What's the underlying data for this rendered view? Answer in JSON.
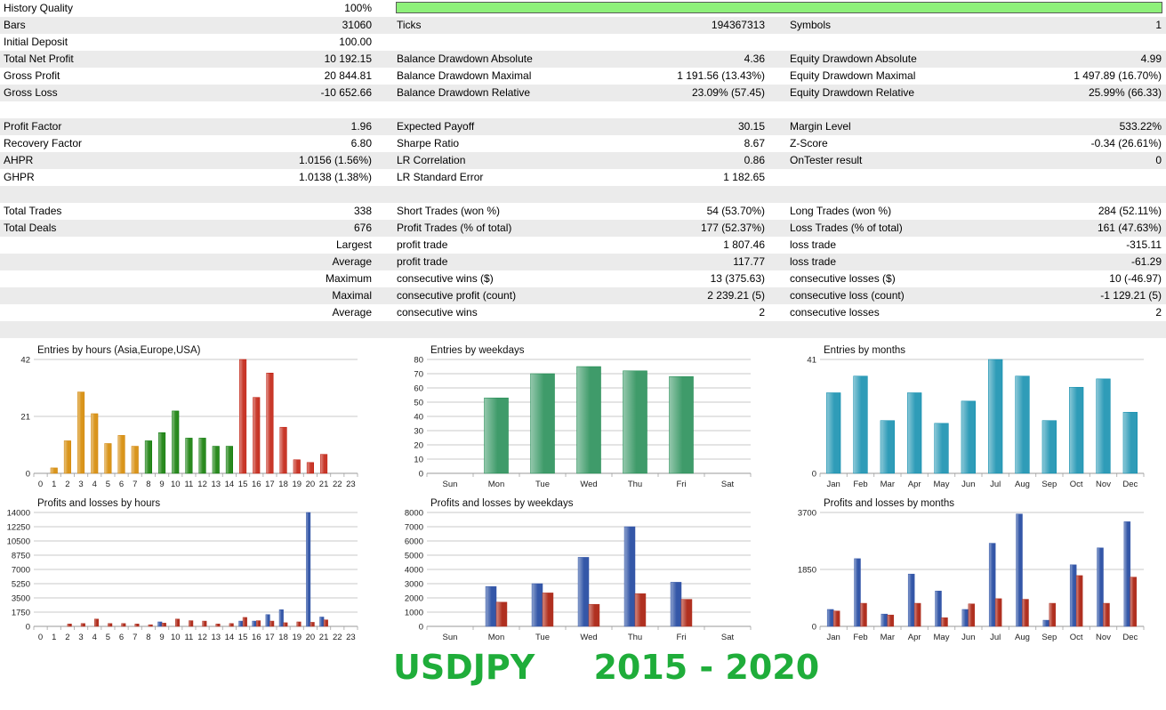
{
  "stats": {
    "history_quality": {
      "label": "History Quality",
      "value": "100%",
      "fill_percent": 100
    },
    "row_bars": [
      {
        "label": "Bars",
        "value": "31060"
      },
      {
        "label": "Ticks",
        "value": "194367313"
      },
      {
        "label": "Symbols",
        "value": "1"
      }
    ],
    "row_deposit": [
      {
        "label": "Initial Deposit",
        "value": "100.00"
      }
    ],
    "row_netprofit": [
      {
        "label": "Total Net Profit",
        "value": "10 192.15"
      },
      {
        "label": "Balance Drawdown Absolute",
        "value": "4.36"
      },
      {
        "label": "Equity Drawdown Absolute",
        "value": "4.99"
      }
    ],
    "row_grossprofit": [
      {
        "label": "Gross Profit",
        "value": "20 844.81"
      },
      {
        "label": "Balance Drawdown Maximal",
        "value": "1 191.56 (13.43%)"
      },
      {
        "label": "Equity Drawdown Maximal",
        "value": "1 497.89 (16.70%)"
      }
    ],
    "row_grossloss": [
      {
        "label": "Gross Loss",
        "value": "-10 652.66"
      },
      {
        "label": "Balance Drawdown Relative",
        "value": "23.09% (57.45)"
      },
      {
        "label": "Equity Drawdown Relative",
        "value": "25.99% (66.33)"
      }
    ],
    "row_pf": [
      {
        "label": "Profit Factor",
        "value": "1.96"
      },
      {
        "label": "Expected Payoff",
        "value": "30.15"
      },
      {
        "label": "Margin Level",
        "value": "533.22%"
      }
    ],
    "row_rf": [
      {
        "label": "Recovery Factor",
        "value": "6.80"
      },
      {
        "label": "Sharpe Ratio",
        "value": "8.67"
      },
      {
        "label": "Z-Score",
        "value": "-0.34 (26.61%)"
      }
    ],
    "row_ahpr": [
      {
        "label": "AHPR",
        "value": "1.0156 (1.56%)"
      },
      {
        "label": "LR Correlation",
        "value": "0.86"
      },
      {
        "label": "OnTester result",
        "value": "0"
      }
    ],
    "row_ghpr": [
      {
        "label": "GHPR",
        "value": "1.0138 (1.38%)"
      },
      {
        "label": "LR Standard Error",
        "value": "1 182.65"
      }
    ],
    "row_trades": [
      {
        "label": "Total Trades",
        "value": "338"
      },
      {
        "label": "Short Trades (won %)",
        "value": "54 (53.70%)"
      },
      {
        "label": "Long Trades (won %)",
        "value": "284 (52.11%)"
      }
    ],
    "row_deals": [
      {
        "label": "Total Deals",
        "value": "676"
      },
      {
        "label": "Profit Trades (% of total)",
        "value": "177 (52.37%)"
      },
      {
        "label": "Loss Trades (% of total)",
        "value": "161 (47.63%)"
      }
    ],
    "row_largest": {
      "prefix": "Largest",
      "items": [
        {
          "label": "profit trade",
          "value": "1 807.46"
        },
        {
          "label": "loss trade",
          "value": "-315.11"
        }
      ]
    },
    "row_average": {
      "prefix": "Average",
      "items": [
        {
          "label": "profit trade",
          "value": "117.77"
        },
        {
          "label": "loss trade",
          "value": "-61.29"
        }
      ]
    },
    "row_maximum": {
      "prefix": "Maximum",
      "items": [
        {
          "label": "consecutive wins ($)",
          "value": "13 (375.63)"
        },
        {
          "label": "consecutive losses ($)",
          "value": "10 (-46.97)"
        }
      ]
    },
    "row_maximal": {
      "prefix": "Maximal",
      "items": [
        {
          "label": "consecutive profit (count)",
          "value": "2 239.21 (5)"
        },
        {
          "label": "consecutive loss (count)",
          "value": "-1 129.21 (5)"
        }
      ]
    },
    "row_average2": {
      "prefix": "Average",
      "items": [
        {
          "label": "consecutive wins",
          "value": "2"
        },
        {
          "label": "consecutive losses",
          "value": "2"
        }
      ]
    }
  },
  "chart_data": [
    {
      "type": "bar",
      "title": "Entries by hours (Asia,Europe,USA)",
      "categories": [
        "0",
        "1",
        "2",
        "3",
        "4",
        "5",
        "6",
        "7",
        "8",
        "9",
        "10",
        "11",
        "12",
        "13",
        "14",
        "15",
        "16",
        "17",
        "18",
        "19",
        "20",
        "21",
        "22",
        "23"
      ],
      "values": [
        0,
        2,
        12,
        30,
        22,
        11,
        14,
        10,
        12,
        15,
        23,
        13,
        13,
        10,
        10,
        42,
        28,
        37,
        17,
        5,
        4,
        7,
        0,
        0
      ],
      "ylim": [
        0,
        42
      ],
      "yticks": [
        0,
        21,
        42
      ],
      "colors": {
        "asia": "#d9951c",
        "europe": "#2a8a1f",
        "usa": "#c8382a"
      }
    },
    {
      "type": "bar",
      "title": "Entries by weekdays",
      "categories": [
        "Sun",
        "Mon",
        "Tue",
        "Wed",
        "Thu",
        "Fri",
        "Sat"
      ],
      "values": [
        0,
        53,
        70,
        75,
        72,
        68,
        0
      ],
      "ylim": [
        0,
        80
      ],
      "yticks": [
        0,
        10,
        20,
        30,
        40,
        50,
        60,
        70,
        80
      ],
      "colors": {
        "bar": "#3f9b6a"
      }
    },
    {
      "type": "bar",
      "title": "Entries by months",
      "categories": [
        "Jan",
        "Feb",
        "Mar",
        "Apr",
        "May",
        "Jun",
        "Jul",
        "Aug",
        "Sep",
        "Oct",
        "Nov",
        "Dec"
      ],
      "values": [
        29,
        35,
        19,
        29,
        18,
        26,
        41,
        35,
        19,
        31,
        34,
        22
      ],
      "ylim": [
        0,
        41
      ],
      "yticks": [
        0,
        41
      ],
      "colors": {
        "bar": "#2f9cb8"
      }
    },
    {
      "type": "bar",
      "title": "Profits and losses by hours",
      "categories": [
        "0",
        "1",
        "2",
        "3",
        "4",
        "5",
        "6",
        "7",
        "8",
        "9",
        "10",
        "11",
        "12",
        "13",
        "14",
        "15",
        "16",
        "17",
        "18",
        "19",
        "20",
        "21",
        "22",
        "23"
      ],
      "series": [
        {
          "values": [
            0,
            0,
            0,
            0,
            0,
            0,
            0,
            0,
            0,
            550,
            0,
            0,
            0,
            0,
            0,
            650,
            650,
            1450,
            2050,
            0,
            14000,
            1150,
            0,
            0
          ]
        },
        {
          "values": [
            0,
            0,
            300,
            350,
            900,
            350,
            350,
            300,
            200,
            400,
            900,
            700,
            650,
            300,
            350,
            1100,
            700,
            650,
            450,
            550,
            500,
            800,
            0,
            0
          ]
        }
      ],
      "ylim": [
        0,
        14000
      ],
      "yticks": [
        0,
        1750,
        3500,
        5250,
        7000,
        8750,
        10500,
        12250,
        14000
      ],
      "colors": {
        "profit": "#3457a8",
        "loss": "#b03020"
      }
    },
    {
      "type": "bar",
      "title": "Profits and losses by weekdays",
      "categories": [
        "Sun",
        "Mon",
        "Tue",
        "Wed",
        "Thu",
        "Fri",
        "Sat"
      ],
      "series": [
        {
          "values": [
            0,
            2800,
            3000,
            4850,
            7000,
            3100,
            0
          ]
        },
        {
          "values": [
            0,
            1700,
            2350,
            1550,
            2300,
            1900,
            0
          ]
        }
      ],
      "ylim": [
        0,
        8000
      ],
      "yticks": [
        0,
        1000,
        2000,
        3000,
        4000,
        5000,
        6000,
        7000,
        8000
      ],
      "colors": {
        "profit": "#3457a8",
        "loss": "#b03020"
      }
    },
    {
      "type": "bar",
      "title": "Profits and losses by months",
      "categories": [
        "Jan",
        "Feb",
        "Mar",
        "Apr",
        "May",
        "Jun",
        "Jul",
        "Aug",
        "Sep",
        "Oct",
        "Nov",
        "Dec"
      ],
      "series": [
        {
          "values": [
            550,
            2200,
            400,
            1700,
            1150,
            550,
            2700,
            3650,
            200,
            2000,
            2550,
            3400
          ]
        },
        {
          "values": [
            500,
            750,
            370,
            750,
            280,
            730,
            900,
            880,
            750,
            1650,
            750,
            1600
          ]
        }
      ],
      "ylim": [
        0,
        3700
      ],
      "yticks": [
        0,
        1850,
        3700
      ],
      "colors": {
        "profit": "#3457a8",
        "loss": "#b03020"
      }
    }
  ],
  "footer": {
    "symbol": "USDJPY",
    "period": "2015 - 2020",
    "color": "#1fad3a"
  }
}
